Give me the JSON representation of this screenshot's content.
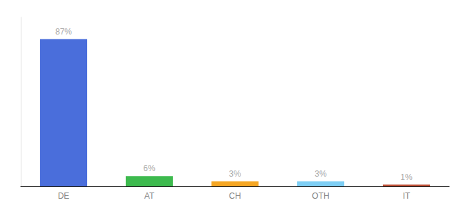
{
  "chart_data": {
    "type": "bar",
    "categories": [
      "DE",
      "AT",
      "CH",
      "OTH",
      "IT"
    ],
    "values": [
      87,
      6,
      3,
      3,
      1
    ],
    "value_labels": [
      "87%",
      "6%",
      "3%",
      "3%",
      "1%"
    ],
    "colors": [
      "#4a6edb",
      "#3dba4e",
      "#f5a623",
      "#7ecef4",
      "#c0533a"
    ],
    "ylim": [
      0,
      100
    ],
    "grid": false,
    "data_labels": true,
    "tick_labels": "x"
  }
}
